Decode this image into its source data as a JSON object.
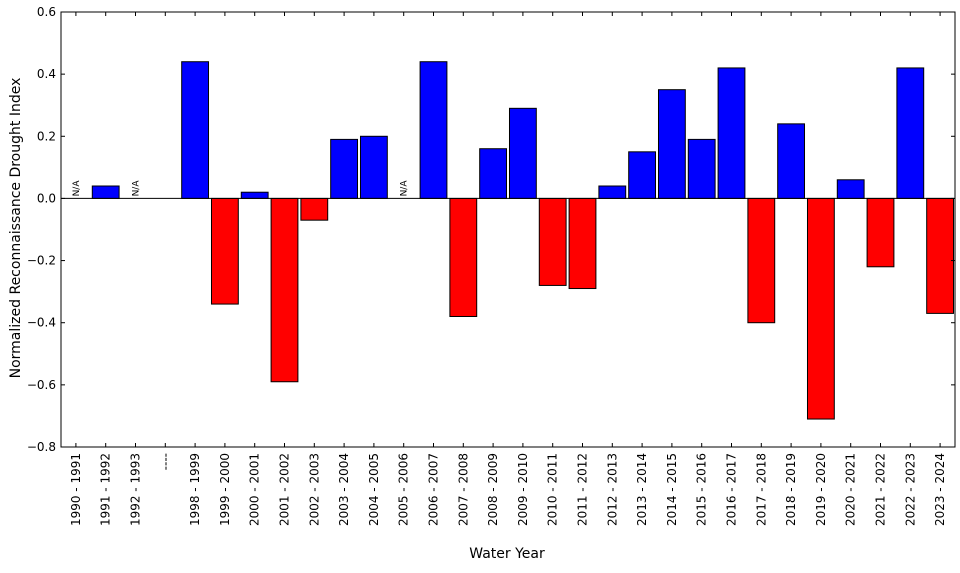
{
  "chart_data": {
    "type": "bar",
    "title": "",
    "xlabel": "Water Year",
    "ylabel": "Normalized Reconnaissance Drought Index",
    "ylim": [
      -0.8,
      0.6
    ],
    "yticks": [
      "0.6",
      "0.4",
      "0.2",
      "0.0",
      "−0.2",
      "−0.4",
      "−0.6",
      "−0.8"
    ],
    "ytick_values": [
      0.6,
      0.4,
      0.2,
      0.0,
      -0.2,
      -0.4,
      -0.6,
      -0.8
    ],
    "grid": false,
    "na_label": "N/A",
    "colors": {
      "positive": "#0000ff",
      "negative": "#ff0000",
      "edge": "#000000"
    },
    "categories": [
      "1990 - 1991",
      "1991 - 1992",
      "1992 - 1993",
      "----",
      "1998 - 1999",
      "1999 - 2000",
      "2000 - 2001",
      "2001 - 2002",
      "2002 - 2003",
      "2003 - 2004",
      "2004 - 2005",
      "2005 - 2006",
      "2006 - 2007",
      "2007 - 2008",
      "2008 - 2009",
      "2009 - 2010",
      "2010 - 2011",
      "2011 - 2012",
      "2012 - 2013",
      "2013 - 2014",
      "2014 - 2015",
      "2015 - 2016",
      "2016 - 2017",
      "2017 - 2018",
      "2018 - 2019",
      "2019 - 2020",
      "2020 - 2021",
      "2021 - 2022",
      "2022 - 2023",
      "2023 - 2024"
    ],
    "values": [
      null,
      0.04,
      null,
      null,
      0.44,
      -0.34,
      0.02,
      -0.59,
      -0.07,
      0.19,
      0.2,
      null,
      0.44,
      -0.38,
      0.16,
      0.29,
      -0.28,
      -0.29,
      0.04,
      0.15,
      0.35,
      0.19,
      0.42,
      -0.4,
      0.24,
      -0.71,
      0.06,
      -0.22,
      0.42,
      -0.37
    ]
  }
}
